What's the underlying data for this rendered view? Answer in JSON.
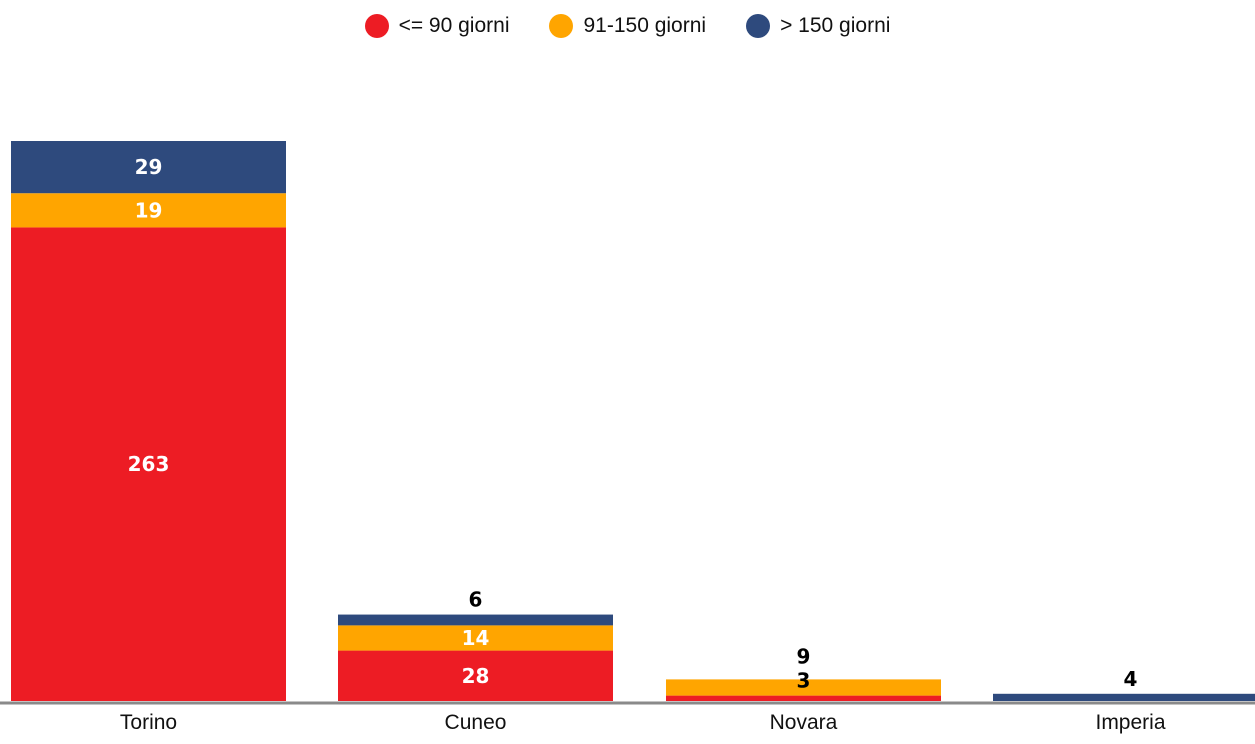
{
  "chart_data": {
    "type": "bar",
    "stacked": true,
    "categories": [
      "Torino",
      "Cuneo",
      "Novara",
      "Imperia"
    ],
    "series": [
      {
        "name": "<= 90 giorni",
        "color": "#ed1c24",
        "values": [
          263,
          28,
          3,
          0
        ]
      },
      {
        "name": "91-150 giorni",
        "color": "#ffa500",
        "values": [
          19,
          14,
          9,
          0
        ]
      },
      {
        "name": "> 150 giorni",
        "color": "#2e4a7d",
        "values": [
          29,
          6,
          0,
          4
        ]
      }
    ],
    "data_labels": [
      [
        "263",
        "19",
        "29"
      ],
      [
        "28",
        "14",
        "6"
      ],
      [
        "3",
        "9",
        ""
      ],
      [
        "",
        "",
        "4"
      ]
    ],
    "legend_position": "top-center",
    "grid": false,
    "ylim": [
      0,
      311
    ]
  }
}
